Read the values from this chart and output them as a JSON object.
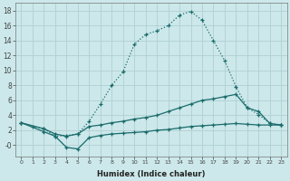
{
  "xlabel": "Humidex (Indice chaleur)",
  "xlim": [
    -0.5,
    23.5
  ],
  "ylim": [
    -1.5,
    19
  ],
  "xticks": [
    0,
    1,
    2,
    3,
    4,
    5,
    6,
    7,
    8,
    9,
    10,
    11,
    12,
    13,
    14,
    15,
    16,
    17,
    18,
    19,
    20,
    21,
    22,
    23
  ],
  "yticks": [
    0,
    2,
    4,
    6,
    8,
    10,
    12,
    14,
    16,
    18
  ],
  "ytick_labels": [
    "0",
    "2",
    "4",
    "6",
    "8",
    "10",
    "12",
    "14",
    "16",
    "18"
  ],
  "background_color": "#cce8ea",
  "grid_color": "#b0d0d3",
  "line_color": "#1a6b6b",
  "series1_x": [
    0,
    1,
    2,
    3,
    4,
    5,
    6,
    7,
    8,
    9,
    10,
    11,
    12,
    13,
    14,
    15,
    16,
    17,
    18,
    19,
    20,
    21,
    22,
    23
  ],
  "series1_y": [
    3.0,
    2.5,
    2.2,
    1.2,
    1.3,
    1.5,
    3.2,
    5.5,
    8.0,
    9.8,
    13.5,
    14.8,
    15.3,
    16.0,
    17.4,
    17.9,
    16.7,
    14.0,
    11.3,
    7.8,
    5.0,
    4.1,
    2.9,
    2.7
  ],
  "series2_x": [
    0,
    2,
    3,
    4,
    5,
    6,
    7,
    8,
    9,
    10,
    11,
    12,
    13,
    14,
    15,
    16,
    17,
    18,
    19,
    20,
    21,
    22,
    23
  ],
  "series2_y": [
    3.0,
    2.2,
    1.5,
    1.2,
    1.5,
    2.5,
    2.7,
    3.0,
    3.2,
    3.5,
    3.7,
    4.0,
    4.5,
    5.0,
    5.5,
    6.0,
    6.2,
    6.5,
    6.8,
    5.0,
    4.5,
    2.9,
    2.7
  ],
  "series3_x": [
    0,
    2,
    3,
    4,
    5,
    6,
    7,
    8,
    9,
    10,
    11,
    12,
    13,
    14,
    15,
    16,
    17,
    18,
    19,
    20,
    21,
    22,
    23
  ],
  "series3_y": [
    3.0,
    1.8,
    1.2,
    -0.3,
    -0.5,
    1.0,
    1.3,
    1.5,
    1.6,
    1.7,
    1.8,
    2.0,
    2.1,
    2.3,
    2.5,
    2.6,
    2.7,
    2.8,
    2.9,
    2.8,
    2.7,
    2.7,
    2.7
  ]
}
